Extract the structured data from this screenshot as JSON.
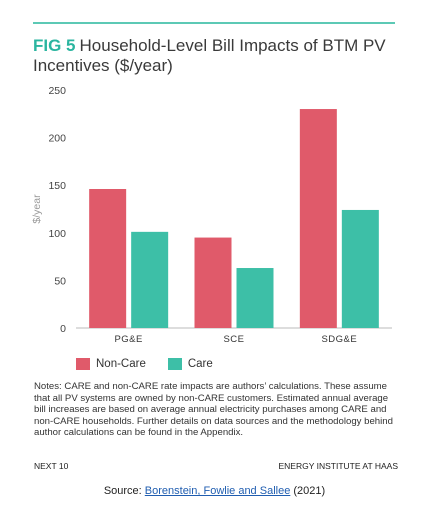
{
  "figure": {
    "label": "FIG 5",
    "title": "Household-Level Bill Impacts of BTM PV Incentives ($/year)"
  },
  "chart_data": {
    "type": "bar",
    "categories": [
      "PG&E",
      "SCE",
      "SDG&E"
    ],
    "series": [
      {
        "name": "Non-Care",
        "values": [
          146,
          95,
          230
        ],
        "color": "#e05a6a"
      },
      {
        "name": "Care",
        "values": [
          101,
          63,
          124
        ],
        "color": "#3dbfa7"
      }
    ],
    "ylabel": "$/year",
    "ylim": [
      0,
      250
    ],
    "yticks": [
      0,
      50,
      100,
      150,
      200,
      250
    ],
    "grid": false,
    "legend_position": "bottom-left"
  },
  "notes": "Notes: CARE and non-CARE rate impacts are authors’ calculations. These assume that all PV systems are owned by non-CARE customers. Estimated annual average bill increases are based on average annual electricity purchases among CARE and non-CARE households. Further details on data sources and the methodology behind author calculations can be found in the Appendix.",
  "footer": {
    "left": "NEXT 10",
    "right": "ENERGY INSTITUTE AT HAAS"
  },
  "source": {
    "prefix": "Source: ",
    "link_text": "Borenstein, Fowlie and Sallee",
    "suffix": " (2021)"
  }
}
